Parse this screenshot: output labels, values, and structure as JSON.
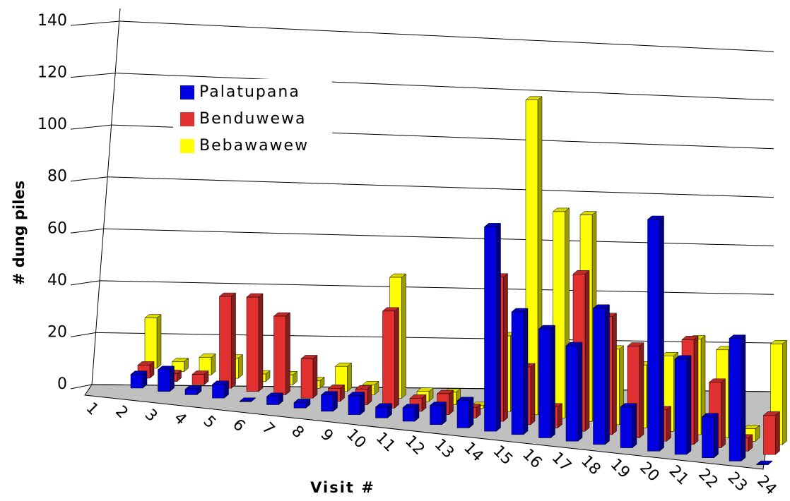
{
  "chart_data": {
    "type": "bar3d",
    "y_label": "# dung piles",
    "x_label": "Visit #",
    "categories": [
      "1",
      "2",
      "3",
      "4",
      "5",
      "6",
      "7",
      "8",
      "9",
      "10",
      "11",
      "12",
      "13",
      "14",
      "15",
      "16",
      "17",
      "18",
      "19",
      "20",
      "21",
      "22",
      "23",
      "24"
    ],
    "series": [
      {
        "name": "Palatupana",
        "color": "#0000e0",
        "values": [
          5,
          8,
          2,
          5,
          0,
          3,
          2,
          6,
          7,
          4,
          5,
          7,
          10,
          75,
          45,
          40,
          35,
          50,
          15,
          85,
          35,
          15,
          45,
          0
        ]
      },
      {
        "name": "Benduwewa",
        "color": "#e03030",
        "values": [
          5,
          3,
          4,
          35,
          36,
          30,
          15,
          5,
          6,
          37,
          5,
          8,
          4,
          55,
          22,
          8,
          60,
          45,
          35,
          12,
          40,
          25,
          5,
          15
        ]
      },
      {
        "name": "Bebawawew",
        "color": "#ffff00",
        "values": [
          20,
          4,
          7,
          8,
          3,
          4,
          3,
          10,
          4,
          48,
          4,
          5,
          1,
          30,
          125,
          82,
          82,
          30,
          25,
          30,
          38,
          35,
          5,
          40
        ]
      }
    ],
    "ylim": [
      0,
      140
    ],
    "yticks": [
      0,
      20,
      40,
      60,
      80,
      100,
      120,
      140
    ],
    "grid": true
  }
}
